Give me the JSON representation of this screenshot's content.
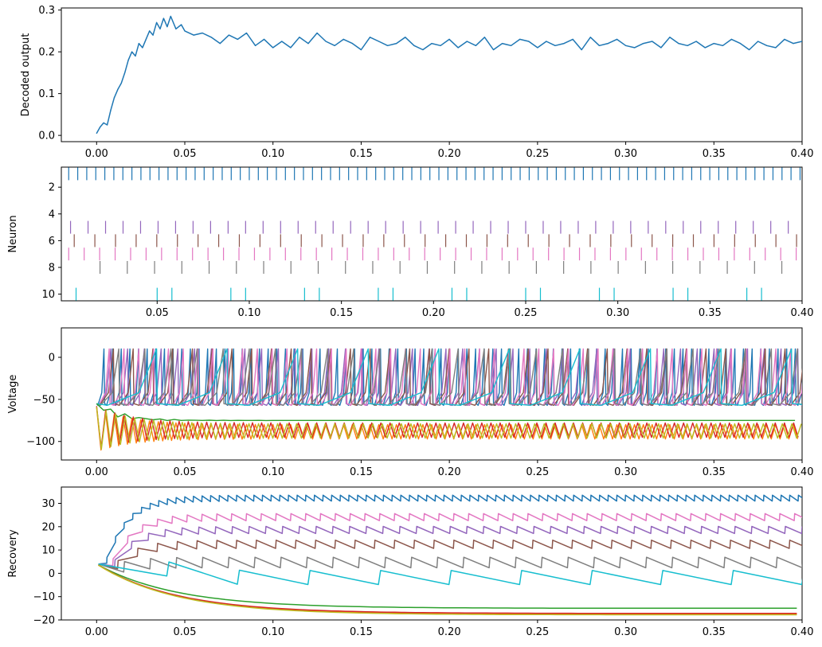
{
  "chart_data": [
    {
      "type": "line",
      "ylabel": "Decoded output",
      "xlim": [
        -0.02,
        0.4
      ],
      "ylim": [
        -0.015,
        0.305
      ],
      "xticks": [
        0.0,
        0.05,
        0.1,
        0.15,
        0.2,
        0.25,
        0.3,
        0.35,
        0.4
      ],
      "xtick_labels": [
        "0.00",
        "0.05",
        "0.10",
        "0.15",
        "0.20",
        "0.25",
        "0.30",
        "0.35",
        "0.40"
      ],
      "yticks": [
        0.0,
        0.1,
        0.2,
        0.3
      ],
      "ytick_labels": [
        "0.0",
        "0.1",
        "0.2",
        "0.3"
      ],
      "series": [
        {
          "color": "#1f77b4",
          "x": [
            0.0,
            0.002,
            0.004,
            0.006,
            0.008,
            0.01,
            0.012,
            0.014,
            0.016,
            0.018,
            0.02,
            0.022,
            0.024,
            0.026,
            0.028,
            0.03,
            0.032,
            0.034,
            0.036,
            0.038,
            0.04,
            0.042,
            0.045,
            0.048,
            0.05,
            0.055,
            0.06,
            0.065,
            0.07,
            0.075,
            0.08,
            0.085,
            0.09,
            0.095,
            0.1,
            0.105,
            0.11,
            0.115,
            0.12,
            0.125,
            0.13,
            0.135,
            0.14,
            0.145,
            0.15,
            0.155,
            0.16,
            0.165,
            0.17,
            0.175,
            0.18,
            0.185,
            0.19,
            0.195,
            0.2,
            0.205,
            0.21,
            0.215,
            0.22,
            0.225,
            0.23,
            0.235,
            0.24,
            0.245,
            0.25,
            0.255,
            0.26,
            0.265,
            0.27,
            0.275,
            0.28,
            0.285,
            0.29,
            0.295,
            0.3,
            0.305,
            0.31,
            0.315,
            0.32,
            0.325,
            0.33,
            0.335,
            0.34,
            0.345,
            0.35,
            0.355,
            0.36,
            0.365,
            0.37,
            0.375,
            0.38,
            0.385,
            0.39,
            0.395,
            0.4
          ],
          "y": [
            0.005,
            0.02,
            0.03,
            0.025,
            0.06,
            0.09,
            0.11,
            0.125,
            0.15,
            0.18,
            0.2,
            0.19,
            0.22,
            0.21,
            0.23,
            0.25,
            0.24,
            0.27,
            0.255,
            0.28,
            0.26,
            0.285,
            0.255,
            0.265,
            0.25,
            0.24,
            0.245,
            0.235,
            0.22,
            0.24,
            0.23,
            0.245,
            0.215,
            0.23,
            0.21,
            0.225,
            0.21,
            0.235,
            0.22,
            0.245,
            0.225,
            0.215,
            0.23,
            0.22,
            0.205,
            0.235,
            0.225,
            0.215,
            0.22,
            0.235,
            0.215,
            0.205,
            0.22,
            0.215,
            0.23,
            0.21,
            0.225,
            0.215,
            0.235,
            0.205,
            0.22,
            0.215,
            0.23,
            0.225,
            0.21,
            0.225,
            0.215,
            0.22,
            0.23,
            0.205,
            0.235,
            0.215,
            0.22,
            0.23,
            0.215,
            0.21,
            0.22,
            0.225,
            0.21,
            0.235,
            0.22,
            0.215,
            0.225,
            0.21,
            0.22,
            0.215,
            0.23,
            0.22,
            0.205,
            0.225,
            0.215,
            0.21,
            0.23,
            0.22,
            0.225
          ]
        }
      ]
    },
    {
      "type": "scatter",
      "ylabel": "Neuron",
      "xlim": [
        -0.002,
        0.4
      ],
      "ylim": [
        10.5,
        0.5
      ],
      "xticks": [
        0.05,
        0.1,
        0.15,
        0.2,
        0.25,
        0.3,
        0.35,
        0.4
      ],
      "xtick_labels": [
        "0.05",
        "0.10",
        "0.15",
        "0.20",
        "0.25",
        "0.30",
        "0.35",
        "0.40"
      ],
      "yticks": [
        2,
        4,
        6,
        8,
        10
      ],
      "ytick_labels": [
        "2",
        "4",
        "6",
        "8",
        "10"
      ],
      "series": [
        {
          "neuron": 1,
          "color": "#1f77b4",
          "first_spike": 0.002,
          "interval": 0.0049
        },
        {
          "neuron": 5,
          "color": "#9467bd",
          "first_spike": 0.003,
          "interval": 0.0095
        },
        {
          "neuron": 6,
          "color": "#8c564b",
          "first_spike": 0.005,
          "interval": 0.0112
        },
        {
          "neuron": 7,
          "color": "#e377c2",
          "first_spike": 0.002,
          "interval": 0.0084
        },
        {
          "neuron": 8,
          "color": "#7f7f7f",
          "first_spike": 0.019,
          "interval": 0.0148
        },
        {
          "neuron": 10,
          "color": "#17becf",
          "first_spike": 0.006,
          "spikes": [
            0.006,
            0.05,
            0.058,
            0.09,
            0.098,
            0.13,
            0.138,
            0.17,
            0.178,
            0.21,
            0.218,
            0.25,
            0.258,
            0.29,
            0.298,
            0.33,
            0.338,
            0.37,
            0.378
          ]
        }
      ]
    },
    {
      "type": "line",
      "ylabel": "Voltage",
      "xlim": [
        -0.02,
        0.4
      ],
      "ylim": [
        -122,
        35
      ],
      "xticks": [
        0.0,
        0.05,
        0.1,
        0.15,
        0.2,
        0.25,
        0.3,
        0.35,
        0.4
      ],
      "xtick_labels": [
        "0.00",
        "0.05",
        "0.10",
        "0.15",
        "0.20",
        "0.25",
        "0.30",
        "0.35",
        "0.40"
      ],
      "yticks": [
        0,
        -50,
        -100
      ],
      "ytick_labels": [
        "0",
        "−50",
        "−100"
      ],
      "series": [
        {
          "color": "#1f77b4",
          "kind": "spiking",
          "interval": 0.0049,
          "peak": 10,
          "reset": -55
        },
        {
          "color": "#9467bd",
          "kind": "spiking",
          "interval": 0.0095,
          "peak": 10,
          "reset": -55
        },
        {
          "color": "#8c564b",
          "kind": "spiking",
          "interval": 0.0112,
          "peak": 10,
          "reset": -55
        },
        {
          "color": "#e377c2",
          "kind": "spiking",
          "interval": 0.0084,
          "peak": 10,
          "reset": -55
        },
        {
          "color": "#7f7f7f",
          "kind": "spiking",
          "interval": 0.0148,
          "peak": 10,
          "reset": -55
        },
        {
          "color": "#17becf",
          "kind": "spiking",
          "interval": 0.04,
          "peak": 10,
          "reset": -55
        },
        {
          "color": "#2ca02c",
          "kind": "silent",
          "level": -75
        },
        {
          "color": "#ff7f0e",
          "kind": "oscillating",
          "low": -97,
          "high": -80
        },
        {
          "color": "#d62728",
          "kind": "oscillating",
          "low": -95,
          "high": -78
        },
        {
          "color": "#bcbd22",
          "kind": "oscillating",
          "low": -96,
          "high": -79
        }
      ]
    },
    {
      "type": "line",
      "ylabel": "Recovery",
      "xlim": [
        -0.02,
        0.4
      ],
      "ylim": [
        -20,
        37
      ],
      "xticks": [
        0.0,
        0.05,
        0.1,
        0.15,
        0.2,
        0.25,
        0.3,
        0.35,
        0.4
      ],
      "xtick_labels": [
        "0.00",
        "0.05",
        "0.10",
        "0.15",
        "0.20",
        "0.25",
        "0.30",
        "0.35",
        "0.40"
      ],
      "yticks": [
        30,
        20,
        10,
        0,
        -10,
        -20
      ],
      "ytick_labels": [
        "30",
        "20",
        "10",
        "0",
        "−10",
        "−20"
      ],
      "series": [
        {
          "color": "#1f77b4",
          "start": 4,
          "steady": 33,
          "interval": 0.0049,
          "amp": 2.5
        },
        {
          "color": "#e377c2",
          "start": 4,
          "steady": 25,
          "interval": 0.0084,
          "amp": 3
        },
        {
          "color": "#9467bd",
          "start": 4,
          "steady": 19.5,
          "interval": 0.0095,
          "amp": 3
        },
        {
          "color": "#8c564b",
          "start": 4,
          "steady": 13.5,
          "interval": 0.0112,
          "amp": 3.5
        },
        {
          "color": "#7f7f7f",
          "start": 4,
          "steady": 6,
          "interval": 0.0148,
          "amp": 4.5
        },
        {
          "color": "#17becf",
          "start": 4,
          "steady": 0,
          "interval": 0.04,
          "amp": 6
        },
        {
          "color": "#2ca02c",
          "start": 4,
          "steady": -15,
          "decay": true
        },
        {
          "color": "#ff7f0e",
          "start": 4,
          "steady": -17.5,
          "decay": true
        },
        {
          "color": "#d62728",
          "start": 4,
          "steady": -17.2,
          "decay": true
        },
        {
          "color": "#bcbd22",
          "start": 4,
          "steady": -17.8,
          "decay": true
        }
      ]
    }
  ]
}
